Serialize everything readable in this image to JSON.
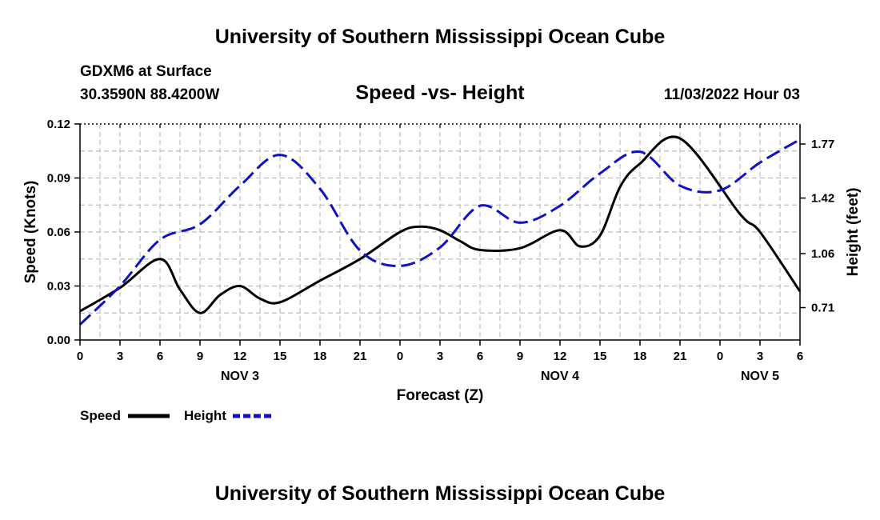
{
  "header": {
    "title": "University of Southern Mississippi Ocean Cube",
    "station": "GDXM6 at Surface",
    "location": "30.3590N  88.4200W",
    "datetime": "11/03/2022 Hour 03",
    "footer_title": "University of Southern Mississippi Ocean Cube"
  },
  "chart_data": {
    "type": "line",
    "title": "Speed -vs- Height",
    "xlabel": "Forecast (Z)",
    "ylabel": "Speed (Knots)",
    "y2label": "Height (feet)",
    "x_range_hours": [
      0,
      54
    ],
    "x_tick_step_hours": 1.5,
    "x_tick_labels": [
      "0",
      "3",
      "6",
      "9",
      "12",
      "15",
      "18",
      "21",
      "0",
      "3",
      "6",
      "9",
      "12",
      "15",
      "18",
      "21",
      "0",
      "3",
      "6"
    ],
    "day_labels": [
      {
        "label": "NOV 3",
        "hour": 12
      },
      {
        "label": "NOV 4",
        "hour": 36
      },
      {
        "label": "NOV 5",
        "hour": 51
      }
    ],
    "ylim": [
      0,
      0.12
    ],
    "y_ticks": [
      "0.00",
      "0.03",
      "0.06",
      "0.09",
      "0.12"
    ],
    "y_tick_values": [
      0,
      0.03,
      0.06,
      0.09,
      0.12
    ],
    "y2lim": [
      0.5,
      1.9
    ],
    "y2_ticks": [
      "0.71",
      "1.06",
      "1.42",
      "1.77"
    ],
    "y2_tick_values": [
      0.71,
      1.06,
      1.42,
      1.77
    ],
    "grid": true,
    "series": [
      {
        "name": "Speed",
        "axis": "left",
        "color": "#000000",
        "style": "solid",
        "x": [
          0,
          3,
          6,
          7.5,
          9,
          10.5,
          12,
          13.5,
          15,
          18,
          21,
          24,
          25.5,
          27,
          28.5,
          30,
          33,
          36,
          37.5,
          39,
          40.5,
          42,
          45,
          49.5,
          51,
          54
        ],
        "values": [
          0.016,
          0.029,
          0.045,
          0.028,
          0.015,
          0.025,
          0.03,
          0.023,
          0.021,
          0.033,
          0.045,
          0.06,
          0.063,
          0.061,
          0.055,
          0.05,
          0.051,
          0.061,
          0.052,
          0.058,
          0.085,
          0.098,
          0.112,
          0.07,
          0.06,
          0.027
        ]
      },
      {
        "name": "Height",
        "axis": "right",
        "color": "#1010c8",
        "style": "dashed",
        "x": [
          0,
          3,
          6,
          9,
          12,
          15,
          18,
          21,
          24,
          27,
          30,
          33,
          36,
          39,
          42,
          45,
          48,
          51,
          54
        ],
        "values": [
          0.6,
          0.85,
          1.15,
          1.25,
          1.5,
          1.7,
          1.48,
          1.08,
          0.98,
          1.1,
          1.37,
          1.26,
          1.37,
          1.58,
          1.72,
          1.5,
          1.47,
          1.65,
          1.8
        ]
      }
    ],
    "legend": "bottom-left"
  }
}
